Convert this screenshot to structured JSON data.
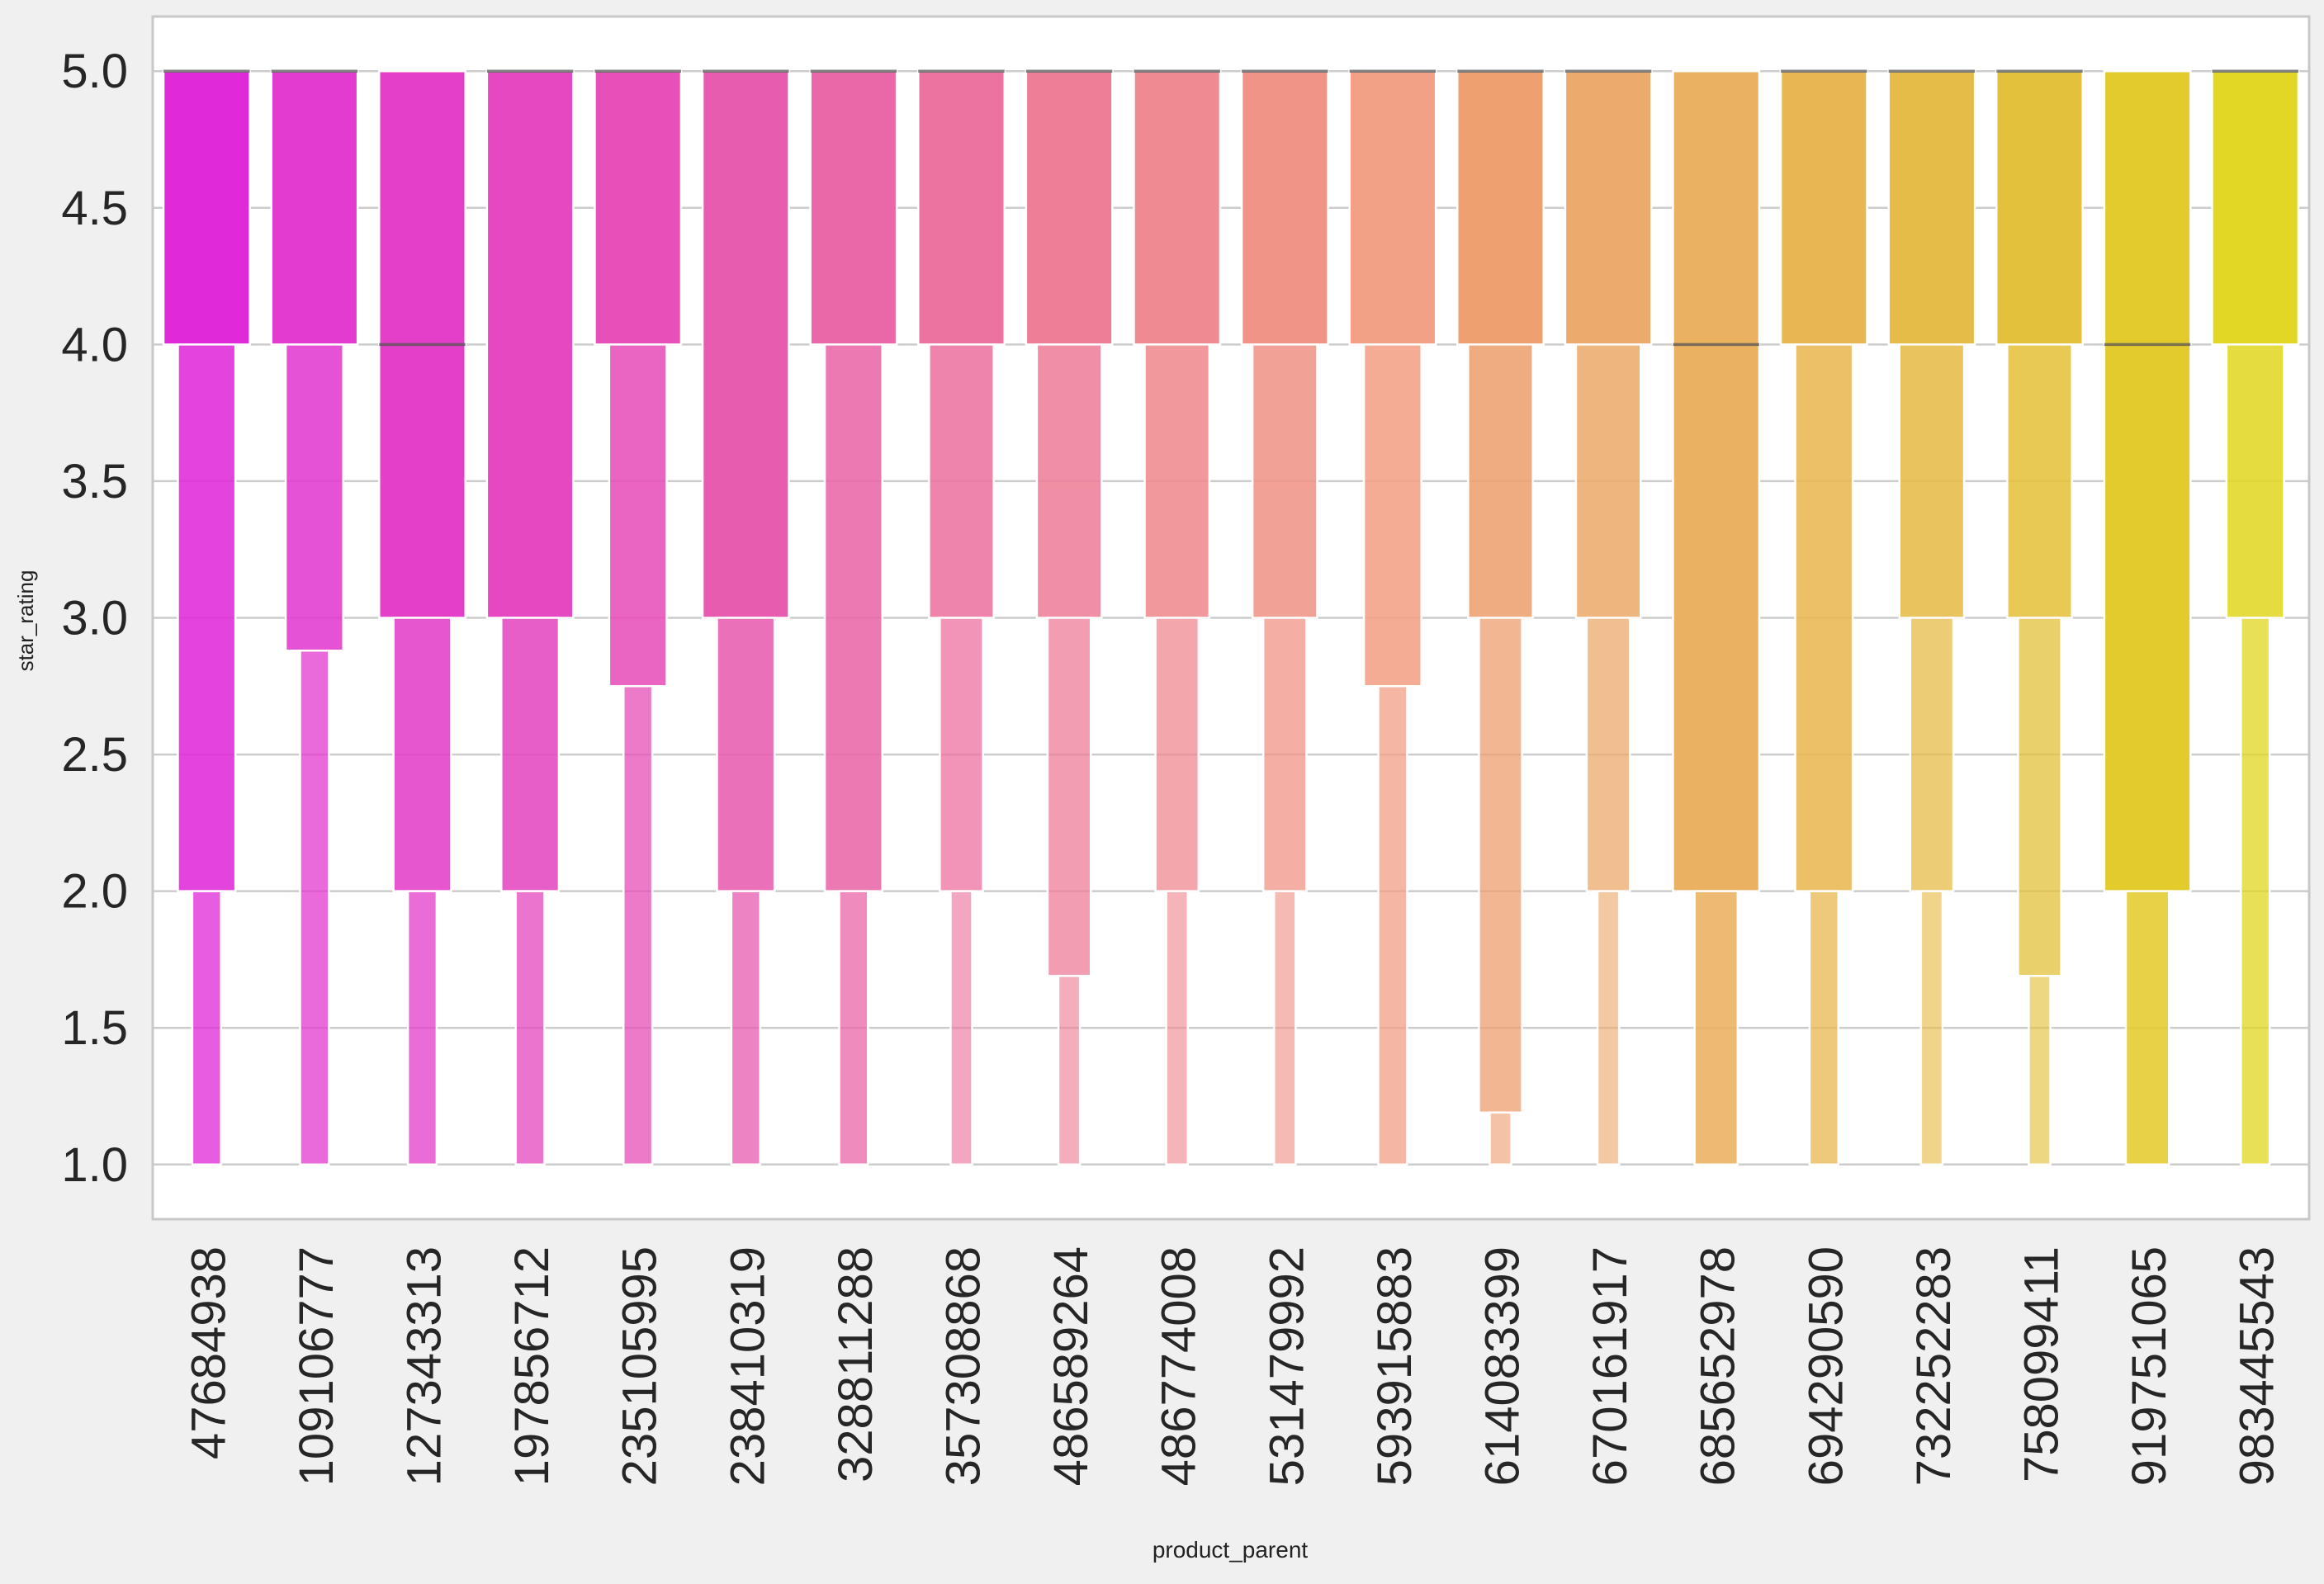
{
  "chart_data": {
    "type": "boxen",
    "xlabel": "product_parent",
    "ylabel": "star_rating",
    "ylim": [
      0.8,
      5.2
    ],
    "yticks": [
      1.0,
      1.5,
      2.0,
      2.5,
      3.0,
      3.5,
      4.0,
      4.5,
      5.0
    ],
    "ytick_labels": [
      "1.0",
      "1.5",
      "2.0",
      "2.5",
      "3.0",
      "3.5",
      "4.0",
      "4.5",
      "5.0"
    ],
    "grid": true,
    "legend": "none",
    "categories": [
      "47684938",
      "109106777",
      "127343313",
      "197856712",
      "235105995",
      "238410319",
      "328811288",
      "357308868",
      "486589264",
      "486774008",
      "531479992",
      "593915883",
      "614083399",
      "670161917",
      "685652978",
      "694290590",
      "732252283",
      "758099411",
      "919751065",
      "983445543"
    ],
    "colors": [
      "#e02ad9",
      "#e33ad0",
      "#e33fc8",
      "#e548c0",
      "#e750b8",
      "#e85cb0",
      "#ea67a8",
      "#ec73a0",
      "#ee7e98",
      "#ef8a90",
      "#f09488",
      "#f2a086",
      "#eea070",
      "#ecab6c",
      "#e9b160",
      "#e8b752",
      "#e6bc48",
      "#e4c13c",
      "#e3cb2e",
      "#e1d724"
    ],
    "boxes": [
      {
        "median": 5.0,
        "levels": [
          [
            4.0,
            5.0
          ],
          [
            2.0,
            4.0
          ],
          [
            1.0,
            2.0
          ]
        ]
      },
      {
        "median": 5.0,
        "levels": [
          [
            4.0,
            5.0
          ],
          [
            2.88,
            4.0
          ],
          [
            1.0,
            2.88
          ]
        ]
      },
      {
        "median": 4.0,
        "levels": [
          [
            3.0,
            5.0
          ],
          [
            2.0,
            3.0
          ],
          [
            1.0,
            2.0
          ]
        ]
      },
      {
        "median": 5.0,
        "levels": [
          [
            3.0,
            5.0
          ],
          [
            2.0,
            3.0
          ],
          [
            1.0,
            2.0
          ]
        ]
      },
      {
        "median": 5.0,
        "levels": [
          [
            4.0,
            5.0
          ],
          [
            2.75,
            4.0
          ],
          [
            1.0,
            2.75
          ]
        ]
      },
      {
        "median": 5.0,
        "levels": [
          [
            3.0,
            5.0
          ],
          [
            2.0,
            3.0
          ],
          [
            1.0,
            2.0
          ]
        ]
      },
      {
        "median": 5.0,
        "levels": [
          [
            4.0,
            5.0
          ],
          [
            2.0,
            4.0
          ],
          [
            1.0,
            2.0
          ]
        ]
      },
      {
        "median": 5.0,
        "levels": [
          [
            4.0,
            5.0
          ],
          [
            3.0,
            4.0
          ],
          [
            2.0,
            3.0
          ],
          [
            1.0,
            2.0
          ]
        ]
      },
      {
        "median": 5.0,
        "levels": [
          [
            4.0,
            5.0
          ],
          [
            3.0,
            4.0
          ],
          [
            1.69,
            3.0
          ],
          [
            1.0,
            1.69
          ]
        ]
      },
      {
        "median": 5.0,
        "levels": [
          [
            4.0,
            5.0
          ],
          [
            3.0,
            4.0
          ],
          [
            2.0,
            3.0
          ],
          [
            1.0,
            2.0
          ]
        ]
      },
      {
        "median": 5.0,
        "levels": [
          [
            4.0,
            5.0
          ],
          [
            3.0,
            4.0
          ],
          [
            2.0,
            3.0
          ],
          [
            1.0,
            2.0
          ]
        ]
      },
      {
        "median": 5.0,
        "levels": [
          [
            4.0,
            5.0
          ],
          [
            2.75,
            4.0
          ],
          [
            1.0,
            2.75
          ]
        ]
      },
      {
        "median": 5.0,
        "levels": [
          [
            4.0,
            5.0
          ],
          [
            3.0,
            4.0
          ],
          [
            1.19,
            3.0
          ],
          [
            1.0,
            1.19
          ]
        ]
      },
      {
        "median": 5.0,
        "levels": [
          [
            4.0,
            5.0
          ],
          [
            3.0,
            4.0
          ],
          [
            2.0,
            3.0
          ],
          [
            1.0,
            2.0
          ]
        ]
      },
      {
        "median": 4.0,
        "levels": [
          [
            2.0,
            5.0
          ],
          [
            1.0,
            2.0
          ]
        ]
      },
      {
        "median": 5.0,
        "levels": [
          [
            4.0,
            5.0
          ],
          [
            2.0,
            4.0
          ],
          [
            1.0,
            2.0
          ]
        ]
      },
      {
        "median": 5.0,
        "levels": [
          [
            4.0,
            5.0
          ],
          [
            3.0,
            4.0
          ],
          [
            2.0,
            3.0
          ],
          [
            1.0,
            2.0
          ]
        ]
      },
      {
        "median": 5.0,
        "levels": [
          [
            4.0,
            5.0
          ],
          [
            3.0,
            4.0
          ],
          [
            1.69,
            3.0
          ],
          [
            1.0,
            1.69
          ]
        ]
      },
      {
        "median": 4.0,
        "levels": [
          [
            2.0,
            5.0
          ],
          [
            1.0,
            2.0
          ]
        ]
      },
      {
        "median": 5.0,
        "levels": [
          [
            4.0,
            5.0
          ],
          [
            3.0,
            4.0
          ],
          [
            1.0,
            3.0
          ]
        ]
      }
    ]
  }
}
